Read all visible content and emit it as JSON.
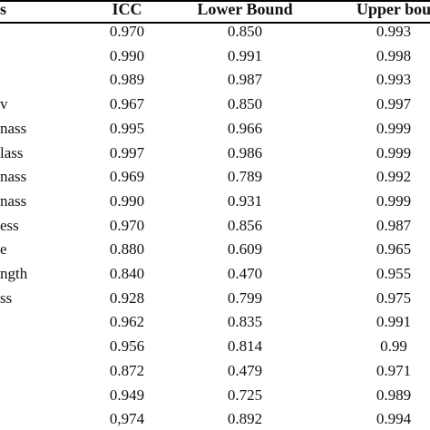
{
  "table": {
    "headers": [
      "s",
      "ICC",
      "Lower Bound",
      "Upper bou"
    ],
    "rows": [
      {
        "label": "",
        "icc": "0.970",
        "lower": "0.850",
        "upper": "0.993"
      },
      {
        "label": "",
        "icc": "0.990",
        "lower": "0.991",
        "upper": "0.998"
      },
      {
        "label": "",
        "icc": "0.989",
        "lower": "0.987",
        "upper": "0.993"
      },
      {
        "label": "v",
        "icc": "0.967",
        "lower": "0.850",
        "upper": "0.997"
      },
      {
        "label": "nass",
        "icc": "0.995",
        "lower": "0.966",
        "upper": "0.999"
      },
      {
        "label": "lass",
        "icc": "0.997",
        "lower": "0.986",
        "upper": "0.999"
      },
      {
        "label": "nass",
        "icc": "0.969",
        "lower": "0.789",
        "upper": "0.992"
      },
      {
        "label": "nass",
        "icc": "0.990",
        "lower": "0.931",
        "upper": "0.999"
      },
      {
        "label": "ess",
        "icc": "0.970",
        "lower": "0.856",
        "upper": "0.987"
      },
      {
        "label": "e",
        "icc": "0.880",
        "lower": "0.609",
        "upper": "0.965"
      },
      {
        "label": "ngth",
        "icc": "0.840",
        "lower": "0.470",
        "upper": "0.955"
      },
      {
        "label": "ss",
        "icc": "0.928",
        "lower": "0.799",
        "upper": "0.975"
      },
      {
        "label": "",
        "icc": "0.962",
        "lower": "0.835",
        "upper": "0.991"
      },
      {
        "label": "",
        "icc": "0.956",
        "lower": "0.814",
        "upper": "0.99"
      },
      {
        "label": "",
        "icc": "0.872",
        "lower": "0.479",
        "upper": "0.971"
      },
      {
        "label": "",
        "icc": "0.949",
        "lower": "0.725",
        "upper": "0.989"
      },
      {
        "label": "",
        "icc": "0,974",
        "lower": "0.892",
        "upper": "0.994"
      }
    ]
  }
}
